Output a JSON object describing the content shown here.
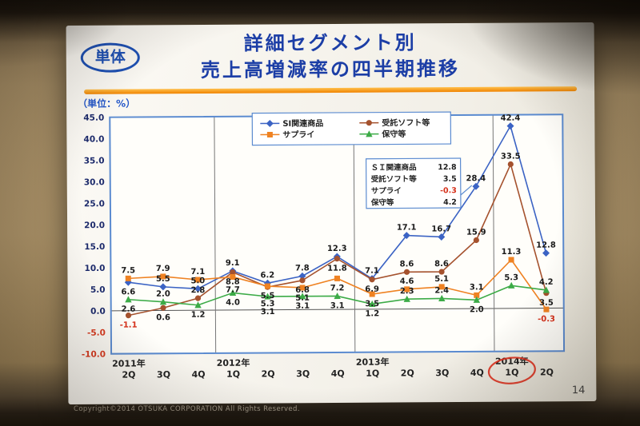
{
  "slide": {
    "badge": "単体",
    "title_line1": "詳細セグメント別",
    "title_line2": "売上高増減率の四半期推移",
    "unit_label": "（単位：%）"
  },
  "footer": {
    "page_number": "14",
    "copyright": "Copyright©2014 OTSUKA CORPORATION All Rights Reserved."
  },
  "chart_data": {
    "type": "line",
    "title": "詳細セグメント別 売上高増減率の四半期推移",
    "unit": "%",
    "ylim": [
      -10,
      45
    ],
    "ytick_step": 5,
    "grid": "year-separators-only",
    "legend_position": "top-center",
    "x_groups": [
      {
        "year": "2011年",
        "quarters": [
          "2Q",
          "3Q",
          "4Q"
        ]
      },
      {
        "year": "2012年",
        "quarters": [
          "1Q",
          "2Q",
          "3Q",
          "4Q"
        ]
      },
      {
        "year": "2013年",
        "quarters": [
          "1Q",
          "2Q",
          "3Q",
          "4Q"
        ]
      },
      {
        "year": "2014年",
        "quarters": [
          "1Q",
          "2Q"
        ]
      }
    ],
    "categories": [
      "2011年2Q",
      "2011年3Q",
      "2011年4Q",
      "2012年1Q",
      "2012年2Q",
      "2012年3Q",
      "2012年4Q",
      "2013年1Q",
      "2013年2Q",
      "2013年3Q",
      "2013年4Q",
      "2014年1Q",
      "2014年2Q"
    ],
    "series": [
      {
        "name": "SI関連商品",
        "marker": "diamond",
        "color": "#3b63c4",
        "values": [
          6.6,
          5.5,
          5.0,
          9.1,
          6.2,
          7.8,
          12.3,
          7.1,
          17.1,
          16.7,
          28.4,
          42.4,
          12.8
        ]
      },
      {
        "name": "受託ソフト等",
        "marker": "circle",
        "color": "#a5522e",
        "values": [
          -1.1,
          0.6,
          2.8,
          8.8,
          5.3,
          6.8,
          11.8,
          6.9,
          8.6,
          8.6,
          15.9,
          33.5,
          3.5
        ]
      },
      {
        "name": "サプライ",
        "marker": "square",
        "color": "#ef8222",
        "values": [
          7.5,
          7.9,
          7.1,
          7.7,
          5.5,
          5.1,
          7.2,
          3.5,
          4.6,
          5.1,
          3.1,
          11.3,
          -0.3
        ]
      },
      {
        "name": "保守等",
        "marker": "triangle",
        "color": "#3cab47",
        "values": [
          2.6,
          2.0,
          1.2,
          4.0,
          3.1,
          3.1,
          3.1,
          1.2,
          2.3,
          2.4,
          2.0,
          5.3,
          4.2
        ]
      }
    ],
    "annotation": {
      "rows": [
        [
          "ＳＩ関連商品",
          "12.8"
        ],
        [
          "受託ソフト等",
          "3.5"
        ],
        [
          "サプライ",
          "-0.3"
        ],
        [
          "保守等",
          "4.2"
        ]
      ]
    },
    "highlight_xlabel": "2014年 1Q",
    "highlight_index": 11
  }
}
